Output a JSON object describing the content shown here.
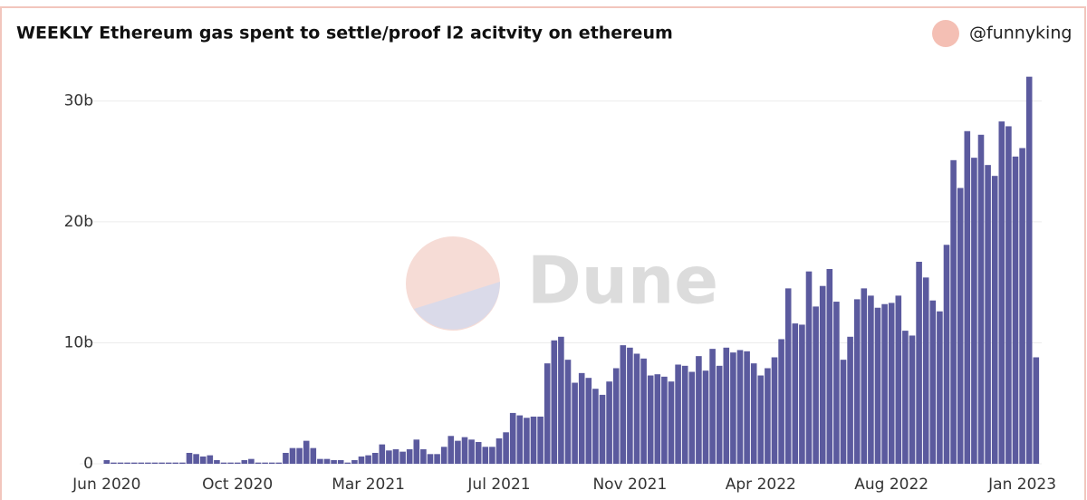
{
  "header": {
    "author": "@funnyking"
  },
  "watermark": "Dune",
  "chart_data": {
    "type": "bar",
    "title": "WEEKLY Ethereum gas spent to settle/proof l2 acitvity on ethereum",
    "categories": [
      "Jun 2020",
      null,
      null,
      null,
      null,
      null,
      null,
      null,
      null,
      null,
      null,
      null,
      null,
      null,
      null,
      null,
      null,
      null,
      null,
      "Oct 2020",
      null,
      null,
      null,
      null,
      null,
      null,
      null,
      null,
      null,
      null,
      null,
      null,
      null,
      null,
      null,
      null,
      null,
      null,
      "Mar 2021",
      null,
      null,
      null,
      null,
      null,
      null,
      null,
      null,
      null,
      null,
      null,
      null,
      null,
      null,
      null,
      null,
      null,
      null,
      "Jul 2021",
      null,
      null,
      null,
      null,
      null,
      null,
      null,
      null,
      null,
      null,
      null,
      null,
      null,
      null,
      null,
      null,
      null,
      null,
      "Nov 2021",
      null,
      null,
      null,
      null,
      null,
      null,
      null,
      null,
      null,
      null,
      null,
      null,
      null,
      null,
      null,
      null,
      null,
      null,
      "Apr 2022",
      null,
      null,
      null,
      null,
      null,
      null,
      null,
      null,
      null,
      null,
      null,
      null,
      null,
      null,
      null,
      null,
      null,
      null,
      "Aug 2022",
      null,
      null,
      null,
      null,
      null,
      null,
      null,
      null,
      null,
      null,
      null,
      null,
      null,
      null,
      null,
      null,
      null,
      null,
      "Jan 2023",
      null,
      null
    ],
    "values": [
      0.3,
      0.1,
      0.1,
      0.1,
      0.1,
      0.1,
      0.1,
      0.1,
      0.1,
      0.1,
      0.1,
      0.1,
      0.9,
      0.8,
      0.6,
      0.7,
      0.3,
      0.1,
      0.1,
      0.1,
      0.3,
      0.4,
      0.1,
      0.1,
      0.1,
      0.1,
      0.9,
      1.3,
      1.3,
      1.9,
      1.3,
      0.4,
      0.4,
      0.3,
      0.3,
      0.1,
      0.3,
      0.6,
      0.7,
      0.9,
      1.6,
      1.1,
      1.2,
      1.0,
      1.2,
      2.0,
      1.2,
      0.8,
      0.8,
      1.4,
      2.3,
      1.9,
      2.2,
      2.0,
      1.8,
      1.4,
      1.4,
      2.1,
      2.6,
      4.2,
      4.0,
      3.8,
      3.9,
      3.9,
      8.3,
      10.2,
      10.5,
      8.6,
      6.7,
      7.5,
      7.1,
      6.2,
      5.7,
      6.8,
      7.9,
      9.8,
      9.6,
      9.1,
      8.7,
      7.3,
      7.4,
      7.2,
      6.8,
      8.2,
      8.1,
      7.6,
      8.9,
      7.7,
      9.5,
      8.1,
      9.6,
      9.2,
      9.4,
      9.3,
      8.3,
      7.3,
      7.9,
      8.8,
      10.3,
      14.5,
      11.6,
      11.5,
      15.9,
      13.0,
      14.7,
      16.1,
      13.4,
      8.6,
      10.5,
      13.6,
      14.5,
      13.9,
      12.9,
      13.2,
      13.3,
      13.9,
      11.0,
      10.6,
      16.7,
      15.4,
      13.5,
      12.6,
      18.1,
      25.1,
      22.8,
      27.5,
      25.3,
      27.2,
      24.7,
      23.8,
      28.3,
      27.9,
      25.4,
      26.1,
      32.0,
      8.8
    ],
    "color": "#5b5a9e",
    "ylim": [
      0,
      32.5
    ],
    "yticks": [
      0,
      {
        "value": 10,
        "label": "10b"
      },
      {
        "value": 20,
        "label": "20b"
      },
      {
        "value": 30,
        "label": "30b"
      }
    ],
    "grid": true
  }
}
